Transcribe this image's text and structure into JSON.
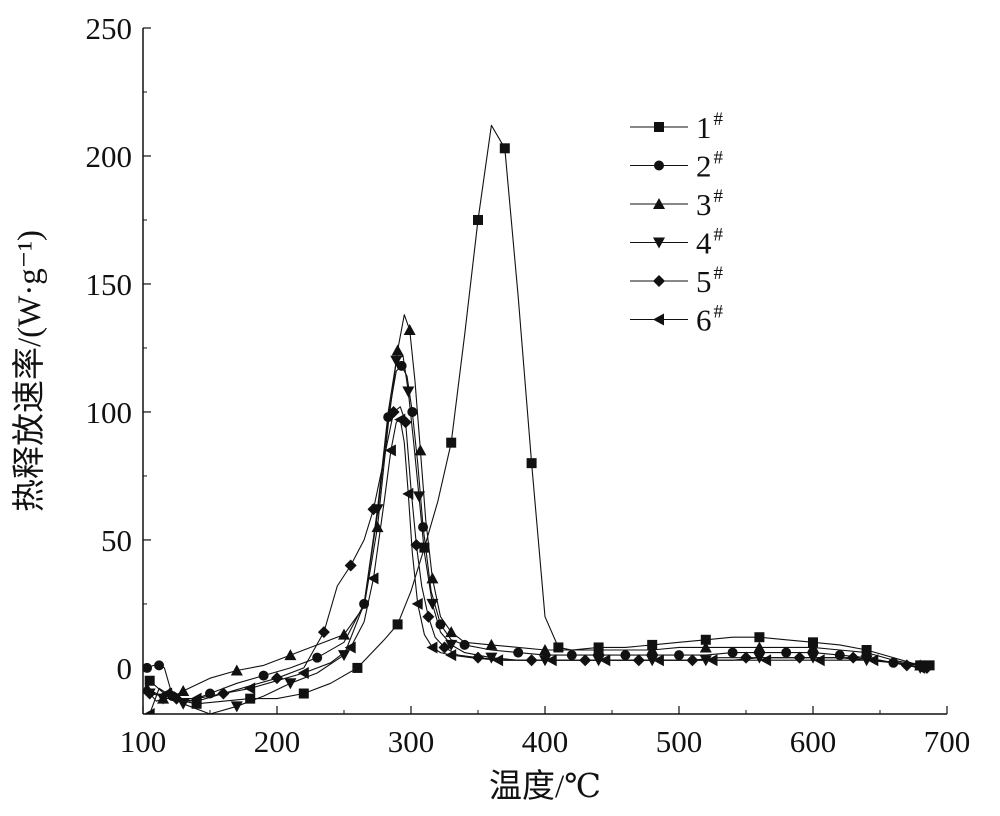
{
  "chart_data": {
    "type": "line",
    "title": "",
    "xlabel": "温度/℃",
    "ylabel": "热释放速率/(W·g⁻¹)",
    "xlim": [
      100,
      700
    ],
    "ylim": [
      -18,
      250
    ],
    "xticks": [
      100,
      200,
      300,
      400,
      500,
      600,
      700
    ],
    "yticks": [
      0,
      50,
      100,
      150,
      200,
      250
    ],
    "xtick_labels": [
      "100",
      "200",
      "300",
      "400",
      "500",
      "600",
      "700"
    ],
    "ytick_labels": [
      "0",
      "50",
      "100",
      "150",
      "200",
      "250"
    ],
    "grid": false,
    "legend": "top-right",
    "series": [
      {
        "name": "1#",
        "marker": "square",
        "x": [
          105,
          120,
          140,
          160,
          180,
          200,
          220,
          240,
          260,
          280,
          290,
          300,
          310,
          320,
          330,
          340,
          350,
          360,
          370,
          380,
          390,
          400,
          410,
          420,
          440,
          460,
          480,
          500,
          520,
          540,
          560,
          580,
          600,
          620,
          640,
          660,
          680,
          687
        ],
        "y": [
          -5,
          -12,
          -14,
          -13,
          -12,
          -12,
          -10,
          -6,
          0,
          11,
          17,
          30,
          47,
          65,
          88,
          130,
          175,
          212,
          203,
          145,
          80,
          20,
          8,
          7,
          8,
          8,
          9,
          10,
          11,
          12,
          12,
          11,
          10,
          9,
          7,
          4,
          1,
          1
        ]
      },
      {
        "name": "2#",
        "marker": "circle",
        "x": [
          103,
          108,
          112,
          116,
          122,
          135,
          150,
          170,
          190,
          210,
          230,
          250,
          265,
          275,
          283,
          289,
          293,
          297,
          301,
          305,
          309,
          315,
          322,
          330,
          340,
          360,
          380,
          400,
          420,
          440,
          460,
          480,
          500,
          520,
          540,
          560,
          580,
          600,
          620,
          640,
          660,
          680
        ],
        "y": [
          0,
          1,
          1,
          0,
          -11,
          -13,
          -10,
          -6,
          -3,
          0,
          4,
          10,
          25,
          60,
          98,
          116,
          118,
          114,
          100,
          80,
          55,
          30,
          17,
          11,
          9,
          7,
          6,
          5,
          5,
          5,
          5,
          5,
          5,
          5,
          6,
          6,
          6,
          6,
          5,
          4,
          2,
          1
        ]
      },
      {
        "name": "3#",
        "marker": "triangle-up",
        "x": [
          103,
          110,
          115,
          120,
          130,
          150,
          170,
          190,
          210,
          230,
          250,
          265,
          275,
          283,
          290,
          295,
          299,
          303,
          307,
          311,
          316,
          322,
          330,
          340,
          360,
          380,
          400,
          420,
          440,
          460,
          480,
          500,
          520,
          540,
          560,
          580,
          600,
          620,
          640,
          660,
          680
        ],
        "y": [
          -8,
          -10,
          -12,
          -12,
          -9,
          -4,
          -1,
          1,
          5,
          9,
          13,
          24,
          55,
          95,
          124,
          138,
          132,
          112,
          85,
          58,
          35,
          20,
          14,
          10,
          9,
          8,
          7,
          7,
          7,
          7,
          7,
          8,
          8,
          8,
          8,
          8,
          8,
          7,
          6,
          3,
          1
        ]
      },
      {
        "name": "4#",
        "marker": "triangle-down",
        "x": [
          105,
          110,
          115,
          120,
          130,
          150,
          170,
          190,
          210,
          230,
          250,
          265,
          275,
          283,
          289,
          294,
          298,
          302,
          306,
          310,
          316,
          322,
          330,
          340,
          360,
          380,
          400,
          420,
          440,
          460,
          480,
          500,
          520,
          540,
          560,
          580,
          600,
          620,
          640,
          660,
          680
        ],
        "y": [
          -10,
          -13,
          -12,
          -8,
          -14,
          -18,
          -15,
          -11,
          -6,
          -2,
          5,
          25,
          62,
          100,
          120,
          122,
          108,
          88,
          67,
          45,
          25,
          14,
          9,
          6,
          4,
          3,
          3,
          3,
          3,
          3,
          3,
          3,
          3,
          3,
          4,
          4,
          4,
          4,
          3,
          2,
          0
        ]
      },
      {
        "name": "5#",
        "marker": "diamond",
        "x": [
          105,
          115,
          125,
          140,
          160,
          180,
          200,
          220,
          235,
          245,
          255,
          265,
          272,
          280,
          287,
          292,
          296,
          300,
          304,
          308,
          313,
          318,
          325,
          335,
          350,
          370,
          390,
          410,
          430,
          450,
          470,
          490,
          510,
          530,
          550,
          570,
          590,
          610,
          630,
          650,
          670,
          685
        ],
        "y": [
          -10,
          -11,
          -12,
          -13,
          -10,
          -7,
          -4,
          0,
          14,
          32,
          40,
          50,
          62,
          82,
          100,
          102,
          96,
          70,
          48,
          32,
          20,
          12,
          8,
          5,
          4,
          3,
          3,
          3,
          3,
          3,
          3,
          3,
          3,
          4,
          4,
          4,
          4,
          4,
          4,
          3,
          1,
          0
        ]
      },
      {
        "name": "6#",
        "marker": "triangle-left",
        "x": [
          105,
          112,
          118,
          125,
          140,
          160,
          180,
          200,
          220,
          240,
          255,
          265,
          272,
          280,
          285,
          289,
          292,
          295,
          298,
          301,
          305,
          310,
          316,
          322,
          330,
          345,
          365,
          385,
          405,
          425,
          445,
          465,
          485,
          505,
          525,
          545,
          565,
          585,
          605,
          625,
          645,
          665,
          680
        ],
        "y": [
          -18,
          -8,
          -10,
          -12,
          -12,
          -10,
          -8,
          -5,
          -2,
          2,
          8,
          18,
          35,
          65,
          85,
          96,
          97,
          88,
          68,
          45,
          25,
          13,
          8,
          6,
          5,
          4,
          3,
          3,
          3,
          3,
          3,
          3,
          3,
          3,
          3,
          3,
          3,
          3,
          3,
          3,
          3,
          2,
          0
        ]
      }
    ]
  }
}
